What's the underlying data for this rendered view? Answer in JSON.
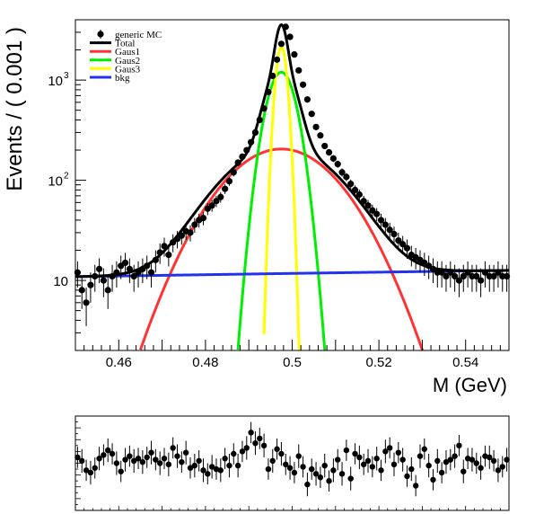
{
  "chart_data": [
    {
      "type": "scatter",
      "title": "",
      "xlabel": "M (GeV)",
      "ylabel": "Events / ( 0.001 )",
      "xlim": [
        0.45,
        0.55
      ],
      "ylim": [
        2,
        4000
      ],
      "yscale": "log",
      "xticks": [
        {
          "value": 0.46,
          "label": "0.46"
        },
        {
          "value": 0.48,
          "label": "0.48"
        },
        {
          "value": 0.5,
          "label": "0.5"
        },
        {
          "value": 0.52,
          "label": "0.52"
        },
        {
          "value": 0.54,
          "label": "0.54"
        }
      ],
      "yticks": [
        {
          "value": 10,
          "label": "10"
        },
        {
          "value": 100,
          "label": "10",
          "exp": "2"
        },
        {
          "value": 1000,
          "label": "10",
          "exp": "3"
        }
      ],
      "legend": {
        "position": "top-left",
        "entries": [
          {
            "name": "generic MC",
            "color": "#000000",
            "marker": "point"
          },
          {
            "name": "Total",
            "color": "#000000",
            "marker": "line"
          },
          {
            "name": "Gaus1",
            "color": "#ff3333",
            "marker": "line"
          },
          {
            "name": "Gaus2",
            "color": "#00ee00",
            "marker": "line"
          },
          {
            "name": "Gaus3",
            "color": "#ffff00",
            "marker": "line"
          },
          {
            "name": "bkg",
            "color": "#2233ee",
            "marker": "line"
          }
        ]
      },
      "series": [
        {
          "name": "generic MC",
          "kind": "points",
          "x": [
            0.4505,
            0.4515,
            0.4525,
            0.4535,
            0.4545,
            0.4555,
            0.4565,
            0.4575,
            0.4585,
            0.4595,
            0.4605,
            0.4615,
            0.4625,
            0.4635,
            0.4645,
            0.4655,
            0.4665,
            0.4675,
            0.4685,
            0.4695,
            0.4705,
            0.4715,
            0.4725,
            0.4735,
            0.4745,
            0.4755,
            0.4765,
            0.4775,
            0.4785,
            0.4795,
            0.4805,
            0.4815,
            0.4825,
            0.4835,
            0.4845,
            0.4855,
            0.4865,
            0.4875,
            0.4885,
            0.4895,
            0.4905,
            0.4915,
            0.4925,
            0.4935,
            0.4945,
            0.4955,
            0.4965,
            0.4975,
            0.4985,
            0.4995,
            0.5005,
            0.5015,
            0.5025,
            0.5035,
            0.5045,
            0.5055,
            0.5065,
            0.5075,
            0.5085,
            0.5095,
            0.5105,
            0.5115,
            0.5125,
            0.5135,
            0.5145,
            0.5155,
            0.5165,
            0.5175,
            0.5185,
            0.5195,
            0.5205,
            0.5215,
            0.5225,
            0.5235,
            0.5245,
            0.5255,
            0.5265,
            0.5275,
            0.5285,
            0.5295,
            0.5305,
            0.5315,
            0.5325,
            0.5335,
            0.5345,
            0.5355,
            0.5365,
            0.5375,
            0.5385,
            0.5395,
            0.5405,
            0.5415,
            0.5425,
            0.5435,
            0.5445,
            0.5455,
            0.5465,
            0.5475,
            0.5485,
            0.5495
          ],
          "y": [
            12,
            8,
            6,
            9,
            11,
            13,
            10,
            8,
            11,
            12,
            14,
            15,
            13,
            11,
            12,
            13,
            14,
            12,
            16,
            19,
            22,
            18,
            24,
            26,
            28,
            31,
            30,
            36,
            40,
            42,
            52,
            56,
            62,
            68,
            82,
            98,
            120,
            150,
            172,
            200,
            240,
            300,
            400,
            520,
            760,
            1100,
            1600,
            2300,
            3400,
            2700,
            1800,
            1250,
            900,
            640,
            460,
            340,
            280,
            220,
            190,
            165,
            145,
            120,
            108,
            92,
            80,
            72,
            62,
            56,
            50,
            46,
            40,
            36,
            32,
            29,
            25,
            23,
            21,
            18,
            17,
            16,
            15,
            14,
            13,
            12,
            12,
            11,
            12,
            11,
            10,
            11,
            12,
            11,
            11,
            10,
            12,
            11,
            11,
            12,
            11,
            11
          ],
          "yerr": [
            3.5,
            2.8,
            2.5,
            3.0,
            3.3,
            3.6,
            3.2,
            2.8,
            3.3,
            3.5,
            3.7,
            3.9,
            3.6,
            3.3,
            3.5,
            3.6,
            3.7,
            3.5,
            4.0,
            4.4,
            4.7,
            4.2,
            4.9,
            5.1,
            5.3,
            5.6,
            5.5,
            6.0,
            6.3,
            6.5,
            7.2,
            7.5,
            7.9,
            8.2,
            9.1,
            9.9,
            11,
            12,
            13,
            14,
            15,
            17,
            20,
            23,
            28,
            33,
            40,
            48,
            58,
            52,
            42,
            35,
            30,
            25,
            21,
            18,
            17,
            15,
            14,
            13,
            12,
            11,
            10,
            9.6,
            8.9,
            8.5,
            7.9,
            7.5,
            7.1,
            6.8,
            6.3,
            6.0,
            5.7,
            5.4,
            5.0,
            4.8,
            4.6,
            4.2,
            4.1,
            4.0,
            3.9,
            3.7,
            3.6,
            3.5,
            3.5,
            3.3,
            3.5,
            3.3,
            3.2,
            3.3,
            3.5,
            3.3,
            3.3,
            3.2,
            3.5,
            3.3,
            3.3,
            3.5,
            3.3,
            3.3
          ]
        },
        {
          "name": "Total",
          "kind": "curve",
          "color": "#000000"
        },
        {
          "name": "Gaus1",
          "kind": "curve",
          "color": "#ff3333",
          "mean": 0.4975,
          "sigma": 0.0107,
          "peak": 205
        },
        {
          "name": "Gaus2",
          "kind": "curve",
          "color": "#00ee00",
          "mean": 0.4975,
          "sigma": 0.0028,
          "peak": 1200
        },
        {
          "name": "Gaus3",
          "kind": "curve",
          "color": "#ffff00",
          "mean": 0.4975,
          "sigma": 0.0011,
          "peak": 2150
        },
        {
          "name": "bkg",
          "kind": "curve",
          "color": "#2233ee",
          "y_at_xmin": 10.9,
          "y_at_xmax": 12.6
        }
      ]
    },
    {
      "type": "scatter",
      "title": "",
      "xlim": [
        0.45,
        0.55
      ],
      "ylim": [
        -4,
        4
      ],
      "series": [
        {
          "name": "",
          "kind": "points",
          "x": [
            0.4505,
            0.4515,
            0.4525,
            0.4535,
            0.4545,
            0.4555,
            0.4565,
            0.4575,
            0.4585,
            0.4595,
            0.4605,
            0.4615,
            0.4625,
            0.4635,
            0.4645,
            0.4655,
            0.4665,
            0.4675,
            0.4685,
            0.4695,
            0.4705,
            0.4715,
            0.4725,
            0.4735,
            0.4745,
            0.4755,
            0.4765,
            0.4775,
            0.4785,
            0.4795,
            0.4805,
            0.4815,
            0.4825,
            0.4835,
            0.4845,
            0.4855,
            0.4865,
            0.4875,
            0.4885,
            0.4895,
            0.4905,
            0.4915,
            0.4925,
            0.4935,
            0.4945,
            0.4955,
            0.4965,
            0.4975,
            0.4985,
            0.4995,
            0.5005,
            0.5015,
            0.5025,
            0.5035,
            0.5045,
            0.5055,
            0.5065,
            0.5075,
            0.5085,
            0.5095,
            0.5105,
            0.5115,
            0.5125,
            0.5135,
            0.5145,
            0.5155,
            0.5165,
            0.5175,
            0.5185,
            0.5195,
            0.5205,
            0.5215,
            0.5225,
            0.5235,
            0.5245,
            0.5255,
            0.5265,
            0.5275,
            0.5285,
            0.5295,
            0.5305,
            0.5315,
            0.5325,
            0.5335,
            0.5345,
            0.5355,
            0.5365,
            0.5375,
            0.5385,
            0.5395,
            0.5405,
            0.5415,
            0.5425,
            0.5435,
            0.5445,
            0.5455,
            0.5465,
            0.5475,
            0.5485,
            0.5495
          ],
          "y": [
            0.5,
            0.2,
            -0.6,
            -0.8,
            -0.4,
            0.4,
            0.7,
            1.1,
            0.8,
            0.0,
            -0.7,
            0.3,
            0.6,
            0.2,
            0.4,
            0.1,
            0.5,
            0.9,
            0.3,
            0.0,
            0.4,
            -0.1,
            1.3,
            0.6,
            0.1,
            0.9,
            -0.4,
            -0.2,
            0.2,
            -0.6,
            -0.9,
            -0.3,
            -0.5,
            -0.6,
            0.4,
            -0.2,
            0.8,
            -0.2,
            1.0,
            1.3,
            2.6,
            1.7,
            2.1,
            1.5,
            -0.5,
            0.2,
            1.2,
            0.8,
            -0.1,
            -0.4,
            -0.8,
            0.6,
            -0.3,
            -1.8,
            -0.5,
            -0.9,
            -1.2,
            -0.2,
            -1.5,
            -0.6,
            0.3,
            -0.9,
            1.1,
            -1.3,
            0.8,
            0.5,
            -0.1,
            0.2,
            -0.3,
            0.4,
            -0.6,
            1.0,
            1.3,
            -0.1,
            0.9,
            0.3,
            -1.1,
            -0.5,
            -1.9,
            0.6,
            1.2,
            -0.2,
            -1.4,
            0.2,
            -0.8,
            0.1,
            0.3,
            0.6,
            1.5,
            -0.7,
            0.4,
            0.3,
            0.0,
            -0.4,
            0.6,
            0.5,
            0.2,
            -0.6,
            -0.3,
            0.3
          ],
          "yerr": [
            0.9,
            1.0,
            0.9,
            1.0,
            0.9,
            1.0,
            0.9,
            1.0,
            0.9,
            1.0,
            0.9,
            1.0,
            0.9,
            1.0,
            0.9,
            1.0,
            0.9,
            1.0,
            0.9,
            1.0,
            0.9,
            1.0,
            0.9,
            1.0,
            0.9,
            1.0,
            0.9,
            1.0,
            0.9,
            1.0,
            0.9,
            1.0,
            0.9,
            1.0,
            0.9,
            1.0,
            0.9,
            1.0,
            0.9,
            1.0,
            0.9,
            1.0,
            0.9,
            1.0,
            0.9,
            1.0,
            0.9,
            1.0,
            0.9,
            1.0,
            0.9,
            1.0,
            0.9,
            1.0,
            0.9,
            1.0,
            0.9,
            1.0,
            0.9,
            1.0,
            0.9,
            1.0,
            0.9,
            1.0,
            0.9,
            1.0,
            0.9,
            1.0,
            0.9,
            1.0,
            0.9,
            1.0,
            0.9,
            1.0,
            0.9,
            1.0,
            0.9,
            1.0,
            0.9,
            1.0,
            0.9,
            1.0,
            0.9,
            1.0,
            0.9,
            1.0,
            0.9,
            1.0,
            0.9,
            1.0,
            0.9,
            1.0,
            0.9,
            1.0,
            0.9,
            1.0,
            0.9,
            1.0,
            0.9,
            1.0
          ]
        }
      ]
    }
  ]
}
